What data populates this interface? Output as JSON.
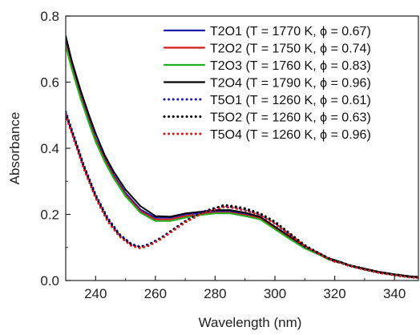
{
  "chart_data": {
    "type": "line",
    "title": "",
    "xlabel": "Wavelength (nm)",
    "ylabel": "Absorbance",
    "xlim": [
      230,
      348
    ],
    "ylim": [
      0,
      0.8
    ],
    "x_ticks": [
      240,
      260,
      280,
      300,
      320,
      340
    ],
    "y_ticks": [
      0.0,
      0.2,
      0.4,
      0.6,
      0.8
    ],
    "x_tick_labels": [
      "240",
      "260",
      "280",
      "300",
      "320",
      "340"
    ],
    "y_tick_labels": [
      "0.0",
      "0.2",
      "0.4",
      "0.6",
      "0.8"
    ],
    "grid": false,
    "legend_position": "top-right",
    "series": [
      {
        "name": "T2O1 (T = 1770 K, ϕ = 0.67)",
        "color": "#1a1aa8",
        "style": "solid",
        "x": [
          230,
          232,
          235,
          238,
          240,
          243,
          246,
          250,
          255,
          260,
          265,
          270,
          275,
          280,
          285,
          290,
          295,
          300,
          305,
          310,
          315,
          318,
          320,
          322,
          325,
          330,
          335,
          340,
          345,
          348
        ],
        "y": [
          0.72,
          0.65,
          0.56,
          0.48,
          0.43,
          0.37,
          0.32,
          0.265,
          0.215,
          0.19,
          0.19,
          0.2,
          0.205,
          0.21,
          0.21,
          0.2,
          0.19,
          0.16,
          0.13,
          0.1,
          0.08,
          0.065,
          0.06,
          0.055,
          0.045,
          0.035,
          0.025,
          0.018,
          0.012,
          0.01
        ]
      },
      {
        "name": "T2O2 (T = 1750 K, ϕ = 0.74)",
        "color": "#d11a1a",
        "style": "solid",
        "x": [
          230,
          232,
          235,
          238,
          240,
          243,
          246,
          250,
          255,
          260,
          265,
          270,
          275,
          280,
          285,
          290,
          295,
          300,
          305,
          310,
          315,
          318,
          320,
          322,
          325,
          330,
          335,
          340,
          345,
          348
        ],
        "y": [
          0.715,
          0.645,
          0.555,
          0.475,
          0.425,
          0.365,
          0.315,
          0.26,
          0.21,
          0.185,
          0.185,
          0.195,
          0.2,
          0.205,
          0.205,
          0.198,
          0.188,
          0.158,
          0.128,
          0.098,
          0.078,
          0.064,
          0.06,
          0.055,
          0.045,
          0.034,
          0.024,
          0.017,
          0.011,
          0.009
        ]
      },
      {
        "name": "T2O3 (T = 1760 K, ϕ = 0.83)",
        "color": "#22b022",
        "style": "solid",
        "x": [
          230,
          232,
          235,
          238,
          240,
          243,
          246,
          250,
          255,
          260,
          265,
          270,
          275,
          280,
          285,
          290,
          295,
          300,
          305,
          310,
          315,
          318,
          320,
          322,
          325,
          330,
          335,
          340,
          345,
          348
        ],
        "y": [
          0.71,
          0.64,
          0.55,
          0.47,
          0.42,
          0.36,
          0.31,
          0.255,
          0.205,
          0.18,
          0.18,
          0.19,
          0.198,
          0.203,
          0.203,
          0.195,
          0.185,
          0.155,
          0.125,
          0.097,
          0.077,
          0.063,
          0.059,
          0.054,
          0.044,
          0.033,
          0.024,
          0.017,
          0.011,
          0.009
        ]
      },
      {
        "name": "T2O4 (T = 1790 K, ϕ = 0.96)",
        "color": "#000000",
        "style": "solid",
        "x": [
          230,
          232,
          235,
          238,
          240,
          243,
          246,
          250,
          255,
          260,
          265,
          270,
          275,
          280,
          285,
          290,
          295,
          300,
          305,
          310,
          315,
          318,
          320,
          322,
          325,
          330,
          335,
          340,
          345,
          348
        ],
        "y": [
          0.74,
          0.665,
          0.575,
          0.495,
          0.445,
          0.38,
          0.33,
          0.275,
          0.225,
          0.195,
          0.193,
          0.203,
          0.208,
          0.213,
          0.213,
          0.205,
          0.193,
          0.163,
          0.133,
          0.102,
          0.082,
          0.067,
          0.062,
          0.056,
          0.046,
          0.036,
          0.026,
          0.019,
          0.013,
          0.011
        ]
      },
      {
        "name": "T5O1 (T = 1260 K, ϕ = 0.61)",
        "color": "#1a1aa8",
        "style": "dotted",
        "x": [
          230,
          233,
          236,
          240,
          244,
          248,
          252,
          255,
          258,
          262,
          266,
          270,
          275,
          280,
          283,
          286,
          290,
          295,
          300,
          305,
          310,
          315,
          320,
          322,
          325,
          330,
          335,
          340,
          345,
          348
        ],
        "y": [
          0.51,
          0.43,
          0.35,
          0.26,
          0.19,
          0.14,
          0.11,
          0.102,
          0.11,
          0.13,
          0.155,
          0.18,
          0.205,
          0.22,
          0.225,
          0.222,
          0.215,
          0.2,
          0.175,
          0.14,
          0.105,
          0.08,
          0.058,
          0.054,
          0.045,
          0.034,
          0.024,
          0.017,
          0.011,
          0.009
        ]
      },
      {
        "name": "T5O2 (T = 1260 K, ϕ = 0.63)",
        "color": "#000000",
        "style": "dotted",
        "x": [
          230,
          233,
          236,
          240,
          244,
          248,
          252,
          255,
          258,
          262,
          266,
          270,
          275,
          280,
          283,
          286,
          290,
          295,
          300,
          305,
          310,
          315,
          320,
          322,
          325,
          330,
          335,
          340,
          345,
          348
        ],
        "y": [
          0.505,
          0.425,
          0.345,
          0.255,
          0.185,
          0.137,
          0.108,
          0.1,
          0.108,
          0.128,
          0.153,
          0.178,
          0.203,
          0.218,
          0.228,
          0.225,
          0.218,
          0.203,
          0.178,
          0.142,
          0.107,
          0.081,
          0.059,
          0.055,
          0.046,
          0.035,
          0.025,
          0.018,
          0.012,
          0.01
        ]
      },
      {
        "name": "T5O4 (T = 1260 K, ϕ = 0.96)",
        "color": "#d11a1a",
        "style": "dotted",
        "x": [
          230,
          233,
          236,
          240,
          244,
          248,
          252,
          255,
          258,
          262,
          266,
          270,
          275,
          280,
          283,
          286,
          290,
          295,
          300,
          305,
          310,
          315,
          320,
          322,
          325,
          330,
          335,
          340,
          345,
          348
        ],
        "y": [
          0.5,
          0.42,
          0.34,
          0.25,
          0.18,
          0.133,
          0.105,
          0.098,
          0.106,
          0.126,
          0.151,
          0.176,
          0.2,
          0.215,
          0.222,
          0.22,
          0.212,
          0.198,
          0.172,
          0.138,
          0.104,
          0.079,
          0.057,
          0.053,
          0.044,
          0.033,
          0.023,
          0.016,
          0.01,
          0.008
        ]
      }
    ]
  }
}
